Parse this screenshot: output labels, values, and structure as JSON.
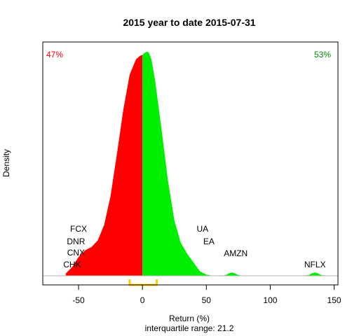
{
  "chart_data": {
    "type": "area",
    "title": "2015  year to date 2015-07-31",
    "xlabel": "Return (%)",
    "ylabel": "Density",
    "subtitle": "interquartile range: 21.2",
    "xlim": [
      -78,
      153
    ],
    "ylim": [
      0,
      1.02
    ],
    "xticks": [
      -50,
      0,
      50,
      100,
      150
    ],
    "xtick_labels": [
      "-50",
      "0",
      "50",
      "100",
      "150"
    ],
    "grid": false,
    "negative_share_label": "47%",
    "positive_share_label": "53%",
    "negative_color": "#ff0000",
    "positive_color": "#00ee00",
    "iqr_color": "#ffcc00",
    "iqr": [
      -10,
      11.2
    ],
    "density": {
      "x": [
        -60,
        -55,
        -50,
        -45,
        -40,
        -35,
        -30,
        -25,
        -20,
        -15,
        -10,
        -5,
        -2,
        0,
        2,
        4,
        5,
        7,
        10,
        15,
        20,
        25,
        30,
        35,
        40,
        45,
        50,
        55,
        60,
        65,
        68,
        70,
        72,
        75,
        78,
        80,
        85,
        100,
        120,
        130,
        133,
        135,
        137,
        140,
        150
      ],
      "y": [
        0.01,
        0.04,
        0.085,
        0.115,
        0.13,
        0.16,
        0.23,
        0.36,
        0.55,
        0.75,
        0.91,
        0.98,
        0.995,
        1.0,
        1.01,
        1.015,
        1.01,
        0.98,
        0.88,
        0.66,
        0.43,
        0.25,
        0.15,
        0.1,
        0.06,
        0.02,
        0.005,
        0.0,
        0.0,
        0.003,
        0.012,
        0.015,
        0.012,
        0.004,
        0.0,
        0.0,
        0.0,
        0.0,
        0.0,
        0.003,
        0.012,
        0.015,
        0.012,
        0.003,
        0.0
      ]
    },
    "outliers": [
      {
        "label": "FCX",
        "x": -50
      },
      {
        "label": "DNR",
        "x": -52
      },
      {
        "label": "CNX",
        "x": -52
      },
      {
        "label": "CHK",
        "x": -55
      },
      {
        "label": "UA",
        "x": 47
      },
      {
        "label": "EA",
        "x": 52
      },
      {
        "label": "AMZN",
        "x": 73
      },
      {
        "label": "NFLX",
        "x": 135
      }
    ]
  }
}
